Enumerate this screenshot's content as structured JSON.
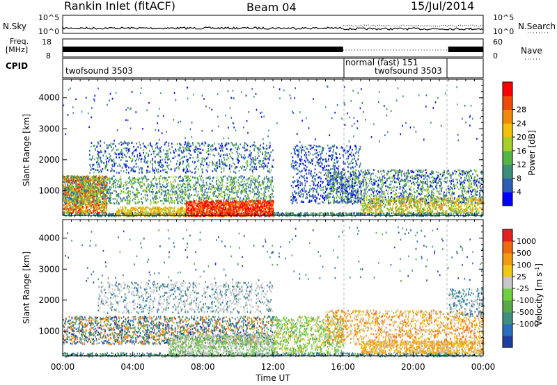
{
  "header": {
    "station": "Rankin Inlet (fitACF)",
    "beam": "Beam 04",
    "date": "15/Jul/2014"
  },
  "panels": {
    "nsky": {
      "label": "N.Sky",
      "ymax": "10^5",
      "ymin": "10^0",
      "right_label": "N.Search"
    },
    "freq": {
      "label_line1": "Freq.",
      "label_line2": "[MHz]",
      "ymax": "18",
      "ymin": "8",
      "right_max": "60",
      "right_min": "0",
      "right_label": "Nave"
    },
    "cpid": {
      "label": "CPID"
    }
  },
  "cpid_segments": [
    {
      "text": "twofsound 3503",
      "start_hour": 0
    },
    {
      "text": "normal (fast) 151",
      "start_hour": 16
    },
    {
      "text": "twofsound 3503",
      "start_hour": 22
    }
  ],
  "time_axis": {
    "label": "Time UT",
    "ticks": [
      "00:00",
      "04:00",
      "08:00",
      "12:00",
      "16:00",
      "20:00",
      "00:00"
    ],
    "range_hours": [
      0,
      24
    ]
  },
  "chart_data": [
    {
      "type": "heatmap",
      "title": "",
      "xlabel": "Time UT",
      "ylabel": "Slant Range [km]",
      "ylim": [
        200,
        4600
      ],
      "yticks": [
        "1000",
        "2000",
        "3000",
        "4000"
      ],
      "colorbar_label": "Power [dB]",
      "colorbar_ticks": [
        "4",
        "8",
        "12",
        "16",
        "20",
        "24",
        "28"
      ],
      "colors": [
        "#0000ff",
        "#2c5fb3",
        "#3d8f7a",
        "#55b544",
        "#a6d02a",
        "#f2c20b",
        "#f08a08",
        "#f04a0a",
        "#ff0000"
      ]
    },
    {
      "type": "heatmap",
      "title": "",
      "xlabel": "Time UT",
      "ylabel": "Slant Range [km]",
      "ylim": [
        200,
        4600
      ],
      "yticks": [
        "1000",
        "2000",
        "3000",
        "4000"
      ],
      "colorbar_label": "Velocity [m s^-1]",
      "colorbar_ticks": [
        "1000",
        "500",
        "100",
        "25",
        "-25",
        "-100",
        "-500",
        "-1000"
      ],
      "colors": [
        "#1f3f9f",
        "#2b6fb8",
        "#3f8f7d",
        "#5aa84a",
        "#6fd040",
        "#c8c8c8",
        "#f2c81a",
        "#f29a10",
        "#f26a10",
        "#e42020"
      ]
    }
  ]
}
